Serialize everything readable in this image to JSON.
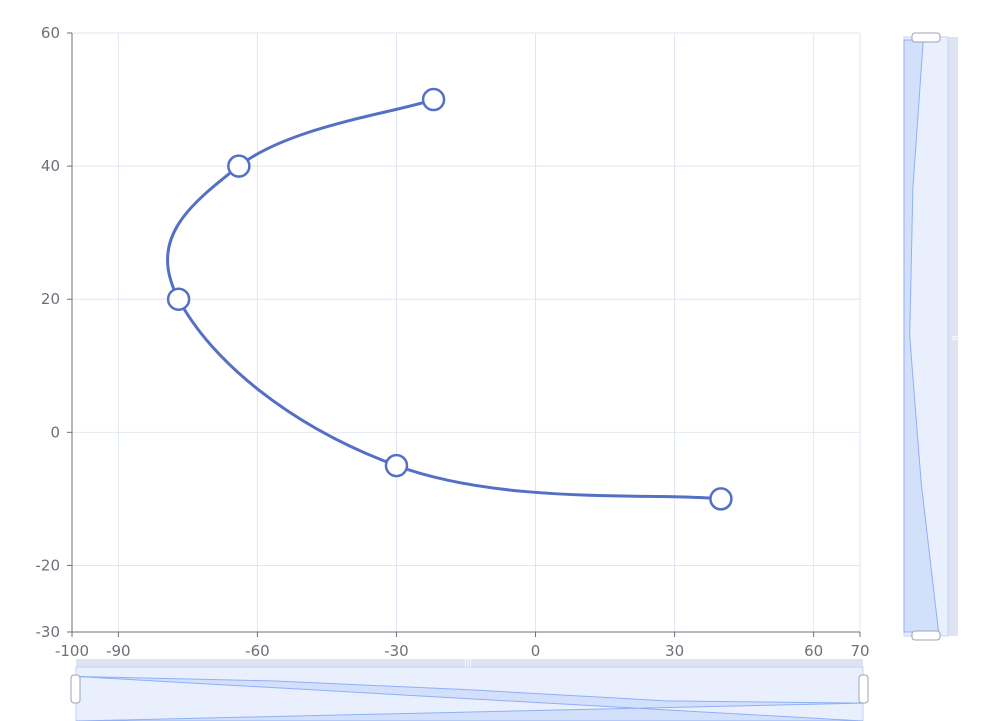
{
  "chart_data": {
    "type": "line",
    "title": "",
    "xlabel": "",
    "ylabel": "",
    "smooth": true,
    "grid": true,
    "xlim": [
      -100,
      70
    ],
    "ylim": [
      -30,
      60
    ],
    "x_ticks": [
      -100,
      -90,
      -60,
      -30,
      0,
      30,
      60,
      70
    ],
    "y_ticks": [
      -30,
      -20,
      0,
      20,
      40,
      60
    ],
    "x_tick_labels": [
      "-100",
      "-90",
      "-60",
      "-30",
      "0",
      "30",
      "60",
      "70"
    ],
    "y_tick_labels": [
      "-30",
      "-20",
      "0",
      "20",
      "40",
      "60"
    ],
    "series": [
      {
        "color": "#5470c6",
        "points": [
          {
            "x": -22,
            "y": 50
          },
          {
            "x": -64,
            "y": 40
          },
          {
            "x": -77,
            "y": 20
          },
          {
            "x": -30,
            "y": -5
          },
          {
            "x": 40,
            "y": -10
          }
        ]
      }
    ],
    "datazoom": {
      "x": {
        "start": 0,
        "end": 100
      },
      "y": {
        "start": 0,
        "end": 100
      }
    },
    "colors": {
      "series": "#5470c6",
      "grid": "#e0e6f1",
      "axis": "#6e7079",
      "zoom_fill": "#d3e0fb",
      "zoom_bg": "#e9effd",
      "zoom_border": "#d2dbee",
      "zoom_line": "#8fb0f7"
    }
  }
}
